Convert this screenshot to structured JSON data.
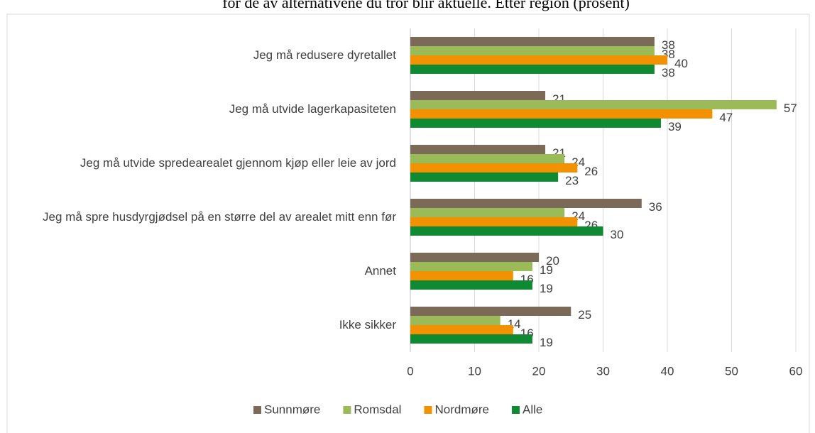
{
  "chart_data": {
    "type": "bar",
    "orientation": "horizontal",
    "title": "for de av alternativene du tror blir aktuelle. Etter region (prosent)",
    "categories": [
      "Jeg må redusere dyretallet",
      "Jeg må utvide lagerkapasiteten",
      "Jeg må utvide spredearealet gjennom kjøp eller leie av jord",
      "Jeg må spre husdyrgjødsel på en større del av arealet mitt enn før",
      "Annet",
      "Ikke sikker"
    ],
    "series": [
      {
        "name": "Sunnmøre",
        "color": "#7b6a58",
        "values": [
          38,
          21,
          21,
          36,
          20,
          25
        ]
      },
      {
        "name": "Romsdal",
        "color": "#9bbb59",
        "values": [
          38,
          57,
          24,
          24,
          19,
          14
        ]
      },
      {
        "name": "Nordmøre",
        "color": "#f39200",
        "values": [
          40,
          47,
          26,
          26,
          16,
          16
        ]
      },
      {
        "name": "Alle",
        "color": "#108a32",
        "values": [
          38,
          39,
          23,
          30,
          19,
          19
        ]
      }
    ],
    "xlim": [
      0,
      60
    ],
    "xticks": [
      0,
      10,
      20,
      30,
      40,
      50,
      60
    ],
    "grid": true,
    "legend": "bottom"
  }
}
